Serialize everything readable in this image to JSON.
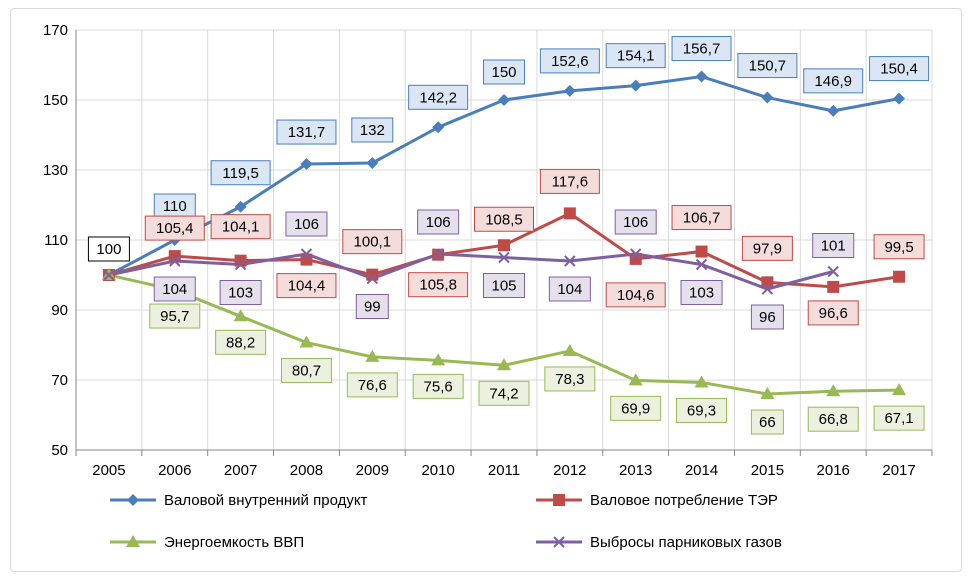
{
  "chart_data": {
    "type": "line",
    "title": "",
    "xlabel": "",
    "ylabel": "",
    "categories": [
      "2005",
      "2006",
      "2007",
      "2008",
      "2009",
      "2010",
      "2011",
      "2012",
      "2013",
      "2014",
      "2015",
      "2016",
      "2017"
    ],
    "ylim": [
      50,
      170
    ],
    "yticks": [
      50,
      70,
      90,
      110,
      130,
      150,
      170
    ],
    "grid": true,
    "legend_position": "bottom",
    "series": [
      {
        "name": "Валовой внутренний продукт",
        "color": "#4a7ebb",
        "marker": "diamond",
        "label_fill": "#dbe6f4",
        "label_stroke": "#4a7ebb",
        "values": [
          100,
          110,
          119.5,
          131.7,
          132,
          142.2,
          150,
          152.6,
          154.1,
          156.7,
          150.7,
          146.9,
          150.4
        ],
        "labels": [
          "100",
          "110",
          "119,5",
          "131,7",
          "132",
          "142,2",
          "150",
          "152,6",
          "154,1",
          "156,7",
          "150,7",
          "146,9",
          "150,4"
        ]
      },
      {
        "name": "Валовое потребление ТЭР",
        "color": "#be4b48",
        "marker": "square",
        "label_fill": "#f4dcdb",
        "label_stroke": "#be4b48",
        "values": [
          100,
          105.4,
          104.1,
          104.4,
          100.1,
          105.8,
          108.5,
          117.6,
          104.6,
          106.7,
          97.9,
          96.6,
          99.5
        ],
        "labels": [
          "",
          "105,4",
          "104,1",
          "104,4",
          "100,1",
          "105,8",
          "108,5",
          "117,6",
          "104,6",
          "106,7",
          "97,9",
          "96,6",
          "99,5"
        ]
      },
      {
        "name": "Энергоемкость ВВП",
        "color": "#98b954",
        "marker": "triangle",
        "label_fill": "#ebf1de",
        "label_stroke": "#98b954",
        "values": [
          100,
          95.7,
          88.2,
          80.7,
          76.6,
          75.6,
          74.2,
          78.3,
          69.9,
          69.3,
          66,
          66.8,
          67.1
        ],
        "labels": [
          "",
          "95,7",
          "88,2",
          "80,7",
          "76,6",
          "75,6",
          "74,2",
          "78,3",
          "69,9",
          "69,3",
          "66",
          "66,8",
          "67,1"
        ]
      },
      {
        "name": "Выбросы парниковых газов",
        "color": "#7d60a0",
        "marker": "x",
        "label_fill": "#e5e0ec",
        "label_stroke": "#7d60a0",
        "values": [
          100,
          104,
          103,
          106,
          99,
          106,
          105,
          104,
          106,
          103,
          96,
          101,
          null
        ],
        "labels": [
          "",
          "104",
          "103",
          "106",
          "99",
          "106",
          "105",
          "104",
          "106",
          "103",
          "96",
          "101",
          ""
        ]
      }
    ]
  }
}
